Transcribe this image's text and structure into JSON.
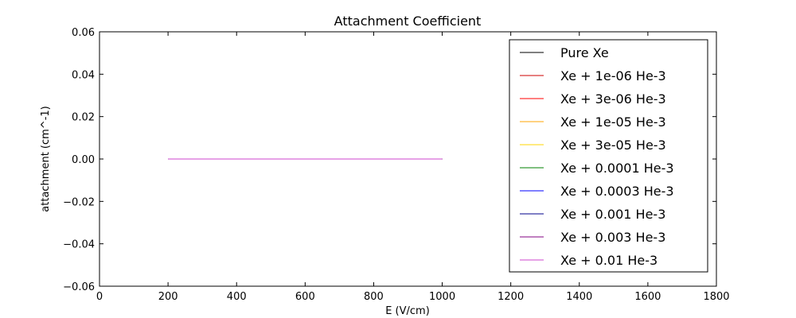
{
  "chart_data": {
    "type": "line",
    "title": "Attachment Coefficient",
    "xlabel": "E (V/cm)",
    "ylabel": "attachment (cm^-1)",
    "xlim": [
      0,
      1800
    ],
    "ylim": [
      -0.06,
      0.06
    ],
    "xticks": [
      0,
      200,
      400,
      600,
      800,
      1000,
      1200,
      1400,
      1600,
      1800
    ],
    "yticks": [
      -0.06,
      -0.04,
      -0.02,
      0.0,
      0.02,
      0.04,
      0.06
    ],
    "xtick_labels": [
      "0",
      "200",
      "400",
      "600",
      "800",
      "1000",
      "1200",
      "1400",
      "1600",
      "1800"
    ],
    "ytick_labels": [
      "−0.06",
      "−0.04",
      "−0.02",
      "0.00",
      "0.02",
      "0.04",
      "0.06"
    ],
    "grid": false,
    "legend_position": "right",
    "series": [
      {
        "name": "Pure Xe",
        "color": "#000000",
        "x": [
          200,
          1000
        ],
        "y": [
          0,
          0
        ]
      },
      {
        "name": "Xe + 1e-06 He-3",
        "color": "#cc0000",
        "x": [
          200,
          1000
        ],
        "y": [
          0,
          0
        ]
      },
      {
        "name": "Xe + 3e-06 He-3",
        "color": "#ff0000",
        "x": [
          200,
          1000
        ],
        "y": [
          0,
          0
        ]
      },
      {
        "name": "Xe + 1e-05 He-3",
        "color": "#ffa500",
        "x": [
          200,
          1000
        ],
        "y": [
          0,
          0
        ]
      },
      {
        "name": "Xe + 3e-05 He-3",
        "color": "#ffd700",
        "x": [
          200,
          1000
        ],
        "y": [
          0,
          0
        ]
      },
      {
        "name": "Xe + 0.0001 He-3",
        "color": "#008000",
        "x": [
          200,
          1000
        ],
        "y": [
          0,
          0
        ]
      },
      {
        "name": "Xe + 0.0003 He-3",
        "color": "#0000ff",
        "x": [
          200,
          1000
        ],
        "y": [
          0,
          0
        ]
      },
      {
        "name": "Xe + 0.001 He-3",
        "color": "#00008b",
        "x": [
          200,
          1000
        ],
        "y": [
          0,
          0
        ]
      },
      {
        "name": "Xe + 0.003 He-3",
        "color": "#800080",
        "x": [
          200,
          1000
        ],
        "y": [
          0,
          0
        ]
      },
      {
        "name": "Xe + 0.01 He-3",
        "color": "#cc44cc",
        "x": [
          200,
          1000
        ],
        "y": [
          0,
          0
        ]
      }
    ]
  }
}
